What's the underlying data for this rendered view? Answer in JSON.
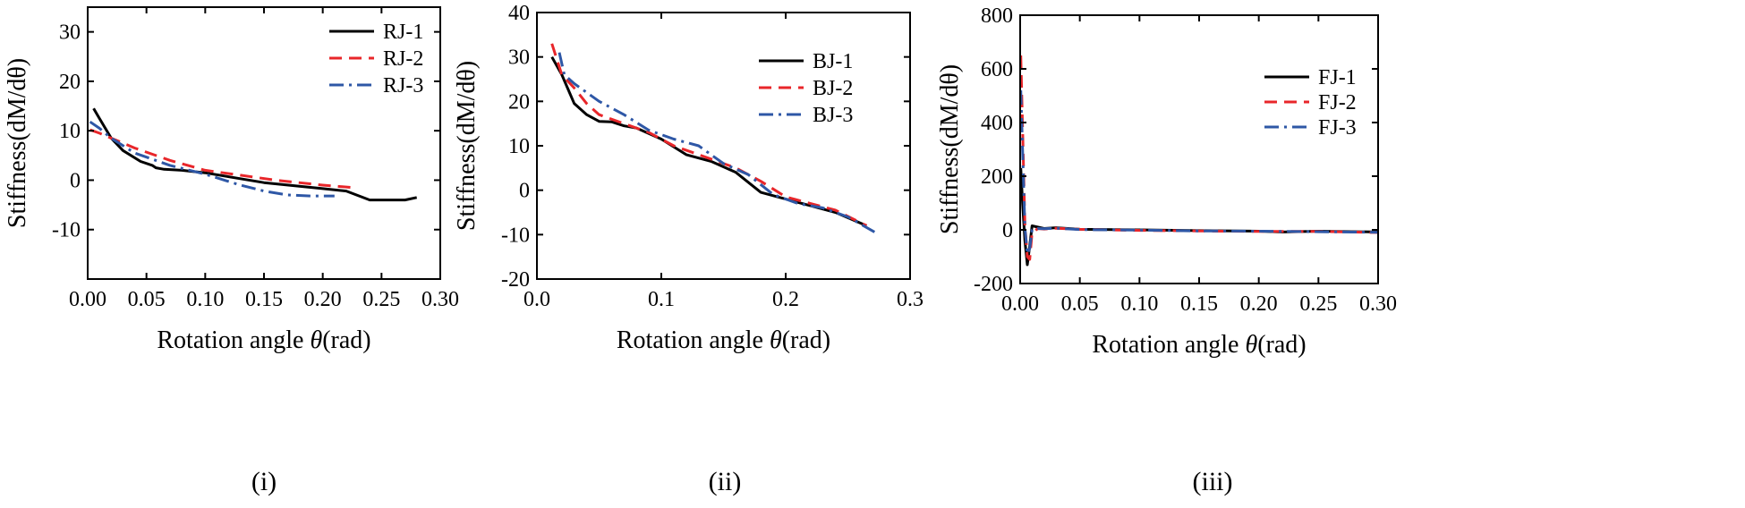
{
  "figure": {
    "title": ""
  },
  "chart_data": [
    {
      "id": "i",
      "type": "line",
      "panel_label": "(i)",
      "xlabel": "Rotation angle θ(rad)",
      "ylabel": "Stiffness(dM/dθ)",
      "xlim": [
        0.0,
        0.3
      ],
      "ylim": [
        -20,
        35
      ],
      "xticks": [
        0.0,
        0.05,
        0.1,
        0.15,
        0.2,
        0.25,
        0.3
      ],
      "xtick_labels": [
        "0.00",
        "0.05",
        "0.10",
        "0.15",
        "0.20",
        "0.25",
        "0.30"
      ],
      "yticks": [
        -10,
        0,
        10,
        20,
        30
      ],
      "ytick_labels": [
        "-10",
        "0",
        "10",
        "20",
        "30"
      ],
      "legend_position": "top-right",
      "series": [
        {
          "name": "RJ-1",
          "color": "#000000",
          "dash": "solid",
          "x": [
            0.005,
            0.01,
            0.02,
            0.03,
            0.045,
            0.055,
            0.058,
            0.065,
            0.08,
            0.1,
            0.15,
            0.2,
            0.22,
            0.24,
            0.27,
            0.28
          ],
          "y": [
            14.5,
            12.5,
            8.5,
            6.0,
            3.8,
            3.0,
            2.5,
            2.2,
            2.0,
            1.5,
            -0.5,
            -1.7,
            -2.2,
            -4.0,
            -4.0,
            -3.5
          ]
        },
        {
          "name": "RJ-2",
          "color": "#e8262a",
          "dash": "dashed",
          "x": [
            0.002,
            0.01,
            0.02,
            0.04,
            0.07,
            0.1,
            0.13,
            0.16,
            0.2,
            0.225
          ],
          "y": [
            10.2,
            9.5,
            8.5,
            6.5,
            4.0,
            2.0,
            1.0,
            0.0,
            -1.0,
            -1.5
          ]
        },
        {
          "name": "RJ-3",
          "color": "#2e57a6",
          "dash": "dashdot",
          "x": [
            0.002,
            0.01,
            0.02,
            0.04,
            0.07,
            0.1,
            0.13,
            0.15,
            0.17,
            0.19,
            0.21
          ],
          "y": [
            11.8,
            10.5,
            8.5,
            5.5,
            3.0,
            1.2,
            -1.0,
            -2.2,
            -3.0,
            -3.2,
            -3.2
          ]
        }
      ]
    },
    {
      "id": "ii",
      "type": "line",
      "panel_label": "(ii)",
      "xlabel": "Rotation angle θ(rad)",
      "ylabel": "Stiffness(dM/dθ)",
      "xlim": [
        0.0,
        0.3
      ],
      "ylim": [
        -20,
        40
      ],
      "xticks": [
        0.0,
        0.1,
        0.2,
        0.3
      ],
      "xtick_labels": [
        "0.0",
        "0.1",
        "0.2",
        "0.3"
      ],
      "yticks": [
        -20,
        -10,
        0,
        10,
        20,
        30,
        40
      ],
      "ytick_labels": [
        "-20",
        "-10",
        "0",
        "10",
        "20",
        "30",
        "40"
      ],
      "legend_position": "top-right",
      "series": [
        {
          "name": "BJ-1",
          "color": "#000000",
          "dash": "solid",
          "x": [
            0.012,
            0.02,
            0.03,
            0.04,
            0.05,
            0.06,
            0.07,
            0.08,
            0.1,
            0.12,
            0.14,
            0.16,
            0.18,
            0.2,
            0.22,
            0.24,
            0.265
          ],
          "y": [
            30.0,
            26.0,
            19.5,
            17.0,
            15.5,
            15.4,
            14.5,
            14.0,
            11.5,
            8.0,
            6.5,
            4.0,
            -0.5,
            -2.0,
            -3.5,
            -5.0,
            -8.0
          ]
        },
        {
          "name": "BJ-2",
          "color": "#e8262a",
          "dash": "dashed",
          "x": [
            0.012,
            0.02,
            0.03,
            0.04,
            0.05,
            0.07,
            0.09,
            0.11,
            0.13,
            0.16,
            0.18,
            0.2,
            0.22,
            0.24,
            0.265
          ],
          "y": [
            33.0,
            26.0,
            23.0,
            19.5,
            17.0,
            15.0,
            13.0,
            10.0,
            8.0,
            5.0,
            2.0,
            -1.5,
            -3.0,
            -4.5,
            -8.0
          ]
        },
        {
          "name": "BJ-3",
          "color": "#2e57a6",
          "dash": "dashdot",
          "x": [
            0.018,
            0.022,
            0.03,
            0.05,
            0.07,
            0.09,
            0.11,
            0.13,
            0.15,
            0.17,
            0.19,
            0.21,
            0.23,
            0.25,
            0.275
          ],
          "y": [
            31.0,
            26.0,
            24.0,
            20.0,
            17.0,
            13.5,
            11.5,
            10.0,
            6.0,
            3.5,
            -1.0,
            -3.0,
            -4.0,
            -6.0,
            -10.0
          ]
        }
      ]
    },
    {
      "id": "iii",
      "type": "line",
      "panel_label": "(iii)",
      "xlabel": "Rotation angle θ(rad)",
      "ylabel": "Stiffness(dM/dθ)",
      "xlim": [
        0.0,
        0.3
      ],
      "ylim": [
        -200,
        800
      ],
      "xticks": [
        0.0,
        0.05,
        0.1,
        0.15,
        0.2,
        0.25,
        0.3
      ],
      "xtick_labels": [
        "0.00",
        "0.05",
        "0.10",
        "0.15",
        "0.20",
        "0.25",
        "0.30"
      ],
      "yticks": [
        -200,
        0,
        200,
        400,
        600,
        800
      ],
      "ytick_labels": [
        "-200",
        "0",
        "200",
        "400",
        "600",
        "800"
      ],
      "legend_position": "right",
      "series": [
        {
          "name": "FJ-1",
          "color": "#000000",
          "dash": "solid",
          "x": [
            0.0005,
            0.002,
            0.004,
            0.006,
            0.008,
            0.01,
            0.015,
            0.02,
            0.03,
            0.05,
            0.1,
            0.15,
            0.2,
            0.22,
            0.25,
            0.3
          ],
          "y": [
            230,
            100,
            -40,
            -130,
            -60,
            15,
            10,
            5,
            8,
            2,
            0,
            -3,
            -5,
            -8,
            -5,
            -8
          ]
        },
        {
          "name": "FJ-2",
          "color": "#e8262a",
          "dash": "dashed",
          "x": [
            0.0005,
            0.002,
            0.004,
            0.006,
            0.008,
            0.01,
            0.015,
            0.02,
            0.03,
            0.05,
            0.1,
            0.15,
            0.2,
            0.25,
            0.3
          ],
          "y": [
            650,
            380,
            20,
            -100,
            -110,
            -10,
            5,
            3,
            6,
            2,
            -2,
            -4,
            -6,
            -6,
            -10
          ]
        },
        {
          "name": "FJ-3",
          "color": "#2e57a6",
          "dash": "dashdot",
          "x": [
            0.0005,
            0.002,
            0.004,
            0.006,
            0.008,
            0.01,
            0.015,
            0.02,
            0.03,
            0.05,
            0.1,
            0.15,
            0.2,
            0.25,
            0.3
          ],
          "y": [
            520,
            300,
            10,
            -90,
            -70,
            0,
            5,
            4,
            6,
            1,
            -1,
            -4,
            -5,
            -7,
            -9
          ]
        }
      ]
    }
  ]
}
